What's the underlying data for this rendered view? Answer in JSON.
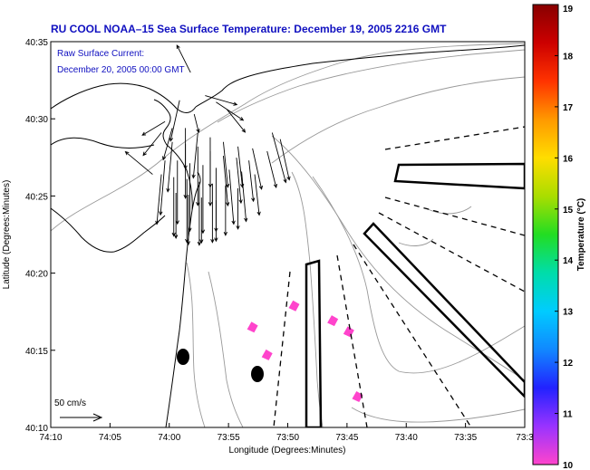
{
  "chart_data": {
    "type": "map",
    "title": "RU COOL   NOAA–15  Sea Surface Temperature:  December 19, 2005 2216 GMT",
    "subtitle_lines": [
      "Raw Surface Current:",
      "December 20, 2005 00:00 GMT"
    ],
    "xlabel": "Longitude (Degrees:Minutes)",
    "ylabel": "Latitude (Degrees:Minutes)",
    "x_ticks": [
      "74:10",
      "74:05",
      "74:00",
      "73:55",
      "73:50",
      "73:45",
      "73:40",
      "73:35",
      "73:3"
    ],
    "y_ticks": [
      "40:35",
      "40:30",
      "40:25",
      "40:20",
      "40:15",
      "40:10"
    ],
    "scale_label": "50 cm/s",
    "colorbar": {
      "label": "Temperature (°C)",
      "min": 10,
      "max": 19,
      "ticks": [
        "19",
        "18",
        "17",
        "16",
        "15",
        "14",
        "13",
        "12",
        "11",
        "10"
      ],
      "colors": [
        "#ff44cc",
        "#9933ff",
        "#2222ff",
        "#1188ff",
        "#00ccff",
        "#00ddaa",
        "#22dd22",
        "#aadd00",
        "#ffdd00",
        "#ff9900",
        "#ff3300",
        "#cc0000",
        "#880000"
      ]
    },
    "current_vectors": [
      {
        "lon": -74.027,
        "lat": 40.44,
        "u": -0.3,
        "v": 0.25
      },
      {
        "lon": -73.975,
        "lat": 40.55,
        "u": -0.15,
        "v": 0.3
      },
      {
        "lon": -73.99,
        "lat": 40.52,
        "u": -0.1,
        "v": -0.45
      },
      {
        "lon": -73.97,
        "lat": 40.505,
        "u": 0.05,
        "v": -0.2
      },
      {
        "lon": -74.01,
        "lat": 40.497,
        "u": -0.25,
        "v": -0.15
      },
      {
        "lon": -74.015,
        "lat": 40.485,
        "u": -0.2,
        "v": -0.25
      },
      {
        "lon": -74.0,
        "lat": 40.49,
        "u": -0.1,
        "v": -0.35
      },
      {
        "lon": -73.982,
        "lat": 40.49,
        "u": 0.0,
        "v": -0.45
      },
      {
        "lon": -73.965,
        "lat": 40.485,
        "u": -0.05,
        "v": -0.5
      },
      {
        "lon": -73.948,
        "lat": 40.48,
        "u": 0.0,
        "v": -0.55
      },
      {
        "lon": -73.93,
        "lat": 40.475,
        "u": 0.05,
        "v": -0.5
      },
      {
        "lon": -73.91,
        "lat": 40.47,
        "u": 0.05,
        "v": -0.45
      },
      {
        "lon": -73.89,
        "lat": 40.468,
        "u": 0.1,
        "v": -0.45
      },
      {
        "lon": -73.87,
        "lat": 40.465,
        "u": 0.1,
        "v": -0.4
      },
      {
        "lon": -74.0,
        "lat": 40.475,
        "u": -0.05,
        "v": -0.55
      },
      {
        "lon": -73.982,
        "lat": 40.473,
        "u": 0.0,
        "v": -0.6
      },
      {
        "lon": -73.965,
        "lat": 40.47,
        "u": 0.0,
        "v": -0.65
      },
      {
        "lon": -73.948,
        "lat": 40.465,
        "u": 0.0,
        "v": -0.6
      },
      {
        "lon": -73.93,
        "lat": 40.46,
        "u": 0.05,
        "v": -0.55
      },
      {
        "lon": -73.912,
        "lat": 40.458,
        "u": 0.05,
        "v": -0.5
      },
      {
        "lon": -73.895,
        "lat": 40.455,
        "u": 0.05,
        "v": -0.45
      },
      {
        "lon": -74.01,
        "lat": 40.455,
        "u": -0.05,
        "v": -0.6
      },
      {
        "lon": -73.993,
        "lat": 40.455,
        "u": 0.0,
        "v": -0.7
      },
      {
        "lon": -73.976,
        "lat": 40.452,
        "u": 0.0,
        "v": -0.75
      },
      {
        "lon": -73.958,
        "lat": 40.45,
        "u": 0.0,
        "v": -0.75
      },
      {
        "lon": -73.94,
        "lat": 40.447,
        "u": 0.0,
        "v": -0.7
      },
      {
        "lon": -73.922,
        "lat": 40.445,
        "u": 0.05,
        "v": -0.6
      },
      {
        "lon": -73.905,
        "lat": 40.443,
        "u": 0.05,
        "v": -0.55
      },
      {
        "lon": -73.887,
        "lat": 40.44,
        "u": 0.05,
        "v": -0.45
      },
      {
        "lon": -74.015,
        "lat": 40.44,
        "u": -0.05,
        "v": -0.55
      },
      {
        "lon": -73.998,
        "lat": 40.437,
        "u": 0.0,
        "v": -0.65
      },
      {
        "lon": -73.98,
        "lat": 40.435,
        "u": 0.0,
        "v": -0.7
      },
      {
        "lon": -73.963,
        "lat": 40.432,
        "u": 0.0,
        "v": -0.7
      },
      {
        "lon": -73.945,
        "lat": 40.43,
        "u": 0.0,
        "v": -0.65
      },
      {
        "lon": -73.927,
        "lat": 40.428,
        "u": 0.0,
        "v": -0.55
      },
      {
        "lon": -73.91,
        "lat": 40.425,
        "u": 0.0,
        "v": -0.45
      },
      {
        "lon": -73.995,
        "lat": 40.42,
        "u": 0.0,
        "v": -0.5
      },
      {
        "lon": -73.978,
        "lat": 40.418,
        "u": 0.0,
        "v": -0.55
      },
      {
        "lon": -73.96,
        "lat": 40.415,
        "u": 0.0,
        "v": -0.5
      },
      {
        "lon": -73.94,
        "lat": 40.412,
        "u": 0.0,
        "v": -0.45
      },
      {
        "lon": -73.863,
        "lat": 40.485,
        "u": 0.15,
        "v": -0.55
      },
      {
        "lon": -73.852,
        "lat": 40.478,
        "u": 0.1,
        "v": -0.45
      },
      {
        "lon": -73.955,
        "lat": 40.525,
        "u": 0.35,
        "v": -0.1
      },
      {
        "lon": -73.94,
        "lat": 40.518,
        "u": 0.3,
        "v": -0.2
      },
      {
        "lon": -73.925,
        "lat": 40.51,
        "u": 0.2,
        "v": -0.25
      }
    ],
    "sst_patches": [
      {
        "lon": -73.89,
        "lat": 40.275,
        "value": 10
      },
      {
        "lon": -73.833,
        "lat": 40.298,
        "value": 10
      },
      {
        "lon": -73.78,
        "lat": 40.282,
        "value": 10
      },
      {
        "lon": -73.758,
        "lat": 40.27,
        "value": 10
      },
      {
        "lon": -73.746,
        "lat": 40.2,
        "value": 10
      },
      {
        "lon": -73.87,
        "lat": 40.245,
        "value": 10
      }
    ]
  }
}
